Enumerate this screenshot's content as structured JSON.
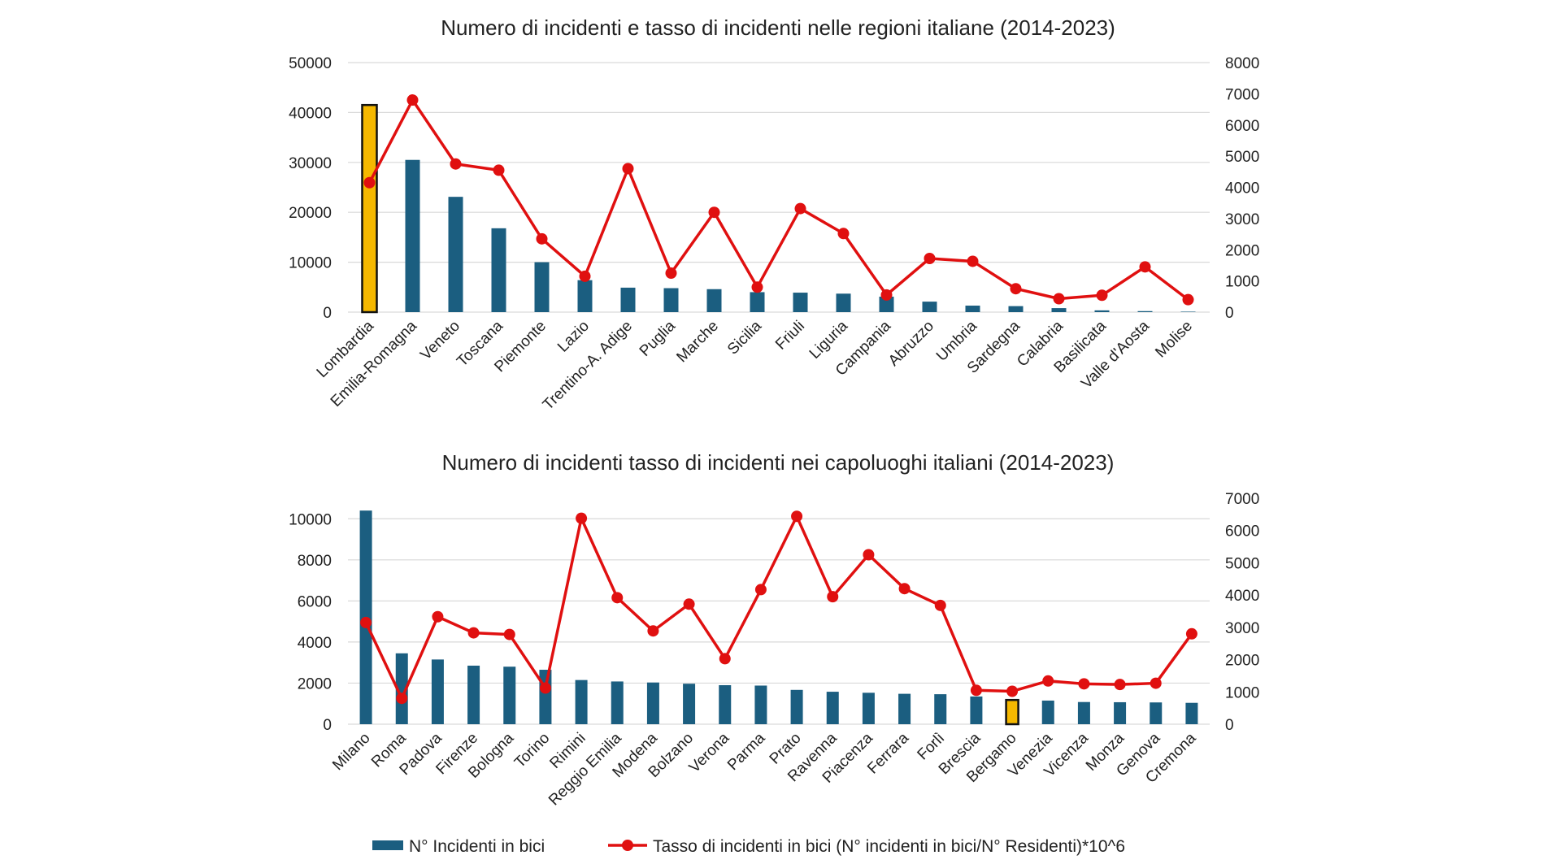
{
  "colors": {
    "bar": "#1B5E80",
    "highlight_bar": "#F5B800",
    "highlight_outline": "#111111",
    "line": "#E01010",
    "grid": "#D9D9D9"
  },
  "legend": {
    "bars_label": "N° Incidenti in bici",
    "line_label": "Tasso di incidenti in bici (N° incidenti in bici/N° Residenti)*10^6"
  },
  "chart_data": [
    {
      "type": "bar+line",
      "title": "Numero di incidenti e tasso di incidenti nelle regioni italiane (2014-2023)",
      "categories": [
        "Lombardia",
        "Emilia-Romagna",
        "Veneto",
        "Toscana",
        "Piemonte",
        "Lazio",
        "Trentino-A. Adige",
        "Puglia",
        "Marche",
        "Sicilia",
        "Friuli",
        "Liguria",
        "Campania",
        "Abruzzo",
        "Umbria",
        "Sardegna",
        "Calabria",
        "Basilicata",
        "Valle d'Aosta",
        "Molise"
      ],
      "series": [
        {
          "name": "N° Incidenti in bici",
          "kind": "bar",
          "axis": "left",
          "values": [
            41500,
            30500,
            23100,
            16800,
            10000,
            6400,
            4900,
            4800,
            4600,
            4000,
            3900,
            3700,
            3100,
            2100,
            1300,
            1200,
            800,
            350,
            200,
            90
          ]
        },
        {
          "name": "Tasso di incidenti in bici (N° incidenti in bici/N° Residenti)*10^6",
          "kind": "line",
          "axis": "right",
          "values": [
            4150,
            6800,
            4750,
            4550,
            2350,
            1150,
            4600,
            1250,
            3200,
            800,
            3320,
            2520,
            550,
            1720,
            1630,
            750,
            430,
            540,
            1450,
            400
          ]
        }
      ],
      "highlight_index": 0,
      "y_left": {
        "min": 0,
        "max": 50000,
        "ticks": [
          "0",
          "10000",
          "20000",
          "30000",
          "40000",
          "50000"
        ],
        "tick_values": [
          0,
          10000,
          20000,
          30000,
          40000,
          50000
        ]
      },
      "y_right": {
        "min": 0,
        "max": 8000,
        "ticks": [
          "0",
          "1000",
          "2000",
          "3000",
          "4000",
          "5000",
          "6000",
          "7000",
          "8000"
        ],
        "tick_values": [
          0,
          1000,
          2000,
          3000,
          4000,
          5000,
          6000,
          7000,
          8000
        ]
      }
    },
    {
      "type": "bar+line",
      "title": "Numero di incidenti tasso di incidenti nei capoluoghi italiani (2014-2023)",
      "categories": [
        "Milano",
        "Roma",
        "Padova",
        "Firenze",
        "Bologna",
        "Torino",
        "Rimini",
        "Reggio Emilia",
        "Modena",
        "Bolzano",
        "Verona",
        "Parma",
        "Prato",
        "Ravenna",
        "Piacenza",
        "Ferrara",
        "Forlì",
        "Brescia",
        "Bergamo",
        "Venezia",
        "Vicenza",
        "Monza",
        "Genova",
        "Cremona"
      ],
      "series": [
        {
          "name": "N° Incidenti in bici",
          "kind": "bar",
          "axis": "left",
          "values": [
            10400,
            3450,
            3150,
            2850,
            2800,
            2650,
            2150,
            2080,
            2030,
            1970,
            1900,
            1880,
            1670,
            1580,
            1530,
            1480,
            1460,
            1350,
            1180,
            1150,
            1080,
            1070,
            1060,
            1040
          ]
        },
        {
          "name": "Tasso di incidenti in bici (N° incidenti in bici/N° Residenti)*10^6",
          "kind": "line",
          "axis": "right",
          "values": [
            3150,
            800,
            3330,
            2830,
            2780,
            1120,
            6380,
            3920,
            2890,
            3720,
            2030,
            4170,
            6440,
            3950,
            5250,
            4200,
            3680,
            1050,
            1020,
            1340,
            1250,
            1230,
            1270,
            2800
          ]
        }
      ],
      "highlight_index": 18,
      "y_left": {
        "min": 0,
        "max": 11000,
        "ticks": [
          "0",
          "2000",
          "4000",
          "6000",
          "8000",
          "10000"
        ],
        "tick_values": [
          0,
          2000,
          4000,
          6000,
          8000,
          10000
        ]
      },
      "y_right": {
        "min": 0,
        "max": 7000,
        "ticks": [
          "0",
          "1000",
          "2000",
          "3000",
          "4000",
          "5000",
          "6000",
          "7000"
        ],
        "tick_values": [
          0,
          1000,
          2000,
          3000,
          4000,
          5000,
          6000,
          7000
        ]
      }
    }
  ]
}
